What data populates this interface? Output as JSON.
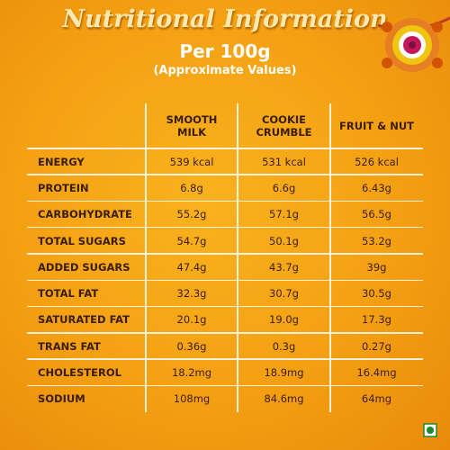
{
  "header": {
    "title": "Nutritional Information",
    "subtitle": "Per 100g",
    "note": "(Approximate Values)"
  },
  "table": {
    "columns": [
      [
        "SMOOTH",
        "MILK"
      ],
      [
        "COOKIE",
        "CRUMBLE"
      ],
      [
        "FRUIT & NUT"
      ]
    ],
    "rows": [
      [
        "ENERGY",
        "539 kcal",
        "531 kcal",
        "526 kcal"
      ],
      [
        "PROTEIN",
        "6.8g",
        "6.6g",
        "6.43g"
      ],
      [
        "CARBOHYDRATE",
        "55.2g",
        "57.1g",
        "56.5g"
      ],
      [
        "TOTAL SUGARS",
        "54.7g",
        "50.1g",
        "53.2g"
      ],
      [
        "ADDED SUGARS",
        "47.4g",
        "43.7g",
        "39g"
      ],
      [
        "TOTAL FAT",
        "32.3g",
        "30.7g",
        "30.5g"
      ],
      [
        "SATURATED FAT",
        "20.1g",
        "19.0g",
        "17.3g"
      ],
      [
        "TRANS FAT",
        "0.36g",
        "0.3g",
        "0.27g"
      ],
      [
        "CHOLESTEROL",
        "18.2mg",
        "18.9mg",
        "16.4mg"
      ],
      [
        "SODIUM",
        "108mg",
        "84.6mg",
        "64mg"
      ]
    ]
  }
}
